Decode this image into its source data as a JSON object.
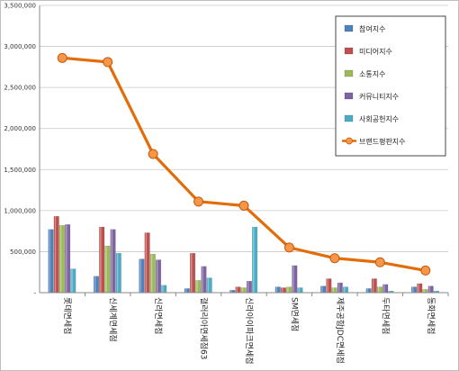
{
  "chart_data": {
    "type": "bar",
    "title": "",
    "xlabel": "",
    "ylabel": "",
    "ylim": [
      0,
      3500000
    ],
    "yticks": [
      0,
      500000,
      1000000,
      1500000,
      2000000,
      2500000,
      3000000,
      3500000
    ],
    "ytick_labels": [
      "-",
      "500,000",
      "1,000,000",
      "1,500,000",
      "2,000,000",
      "2,500,000",
      "3,000,000",
      "3,500,000"
    ],
    "grid": true,
    "legend_position": "top-right",
    "categories": [
      "롯데면세점",
      "신세계면세점",
      "신라면세점",
      "갤러리아면세점63",
      "신라아이파크면세점",
      "SM면세점",
      "제주공항JDC면세점",
      "두타면세점",
      "동화면세점"
    ],
    "series": [
      {
        "name": "참여지수",
        "kind": "bar",
        "color": "#4f81bd",
        "values": [
          770000,
          200000,
          410000,
          50000,
          30000,
          70000,
          80000,
          50000,
          70000
        ]
      },
      {
        "name": "미디어지수",
        "kind": "bar",
        "color": "#c0504d",
        "values": [
          930000,
          800000,
          730000,
          480000,
          70000,
          60000,
          170000,
          170000,
          110000
        ]
      },
      {
        "name": "소통지수",
        "kind": "bar",
        "color": "#9bbb59",
        "values": [
          820000,
          570000,
          470000,
          150000,
          60000,
          70000,
          60000,
          70000,
          40000
        ]
      },
      {
        "name": "커뮤니티지수",
        "kind": "bar",
        "color": "#8064a2",
        "values": [
          830000,
          770000,
          400000,
          320000,
          140000,
          330000,
          120000,
          100000,
          80000
        ]
      },
      {
        "name": "사회공헌지수",
        "kind": "bar",
        "color": "#4bacc6",
        "values": [
          290000,
          480000,
          90000,
          180000,
          800000,
          60000,
          70000,
          20000,
          20000
        ]
      },
      {
        "name": "브랜드평판지수",
        "kind": "line",
        "color": "#e36c09",
        "values": [
          2860000,
          2810000,
          1690000,
          1110000,
          1060000,
          550000,
          420000,
          370000,
          270000
        ]
      }
    ]
  }
}
